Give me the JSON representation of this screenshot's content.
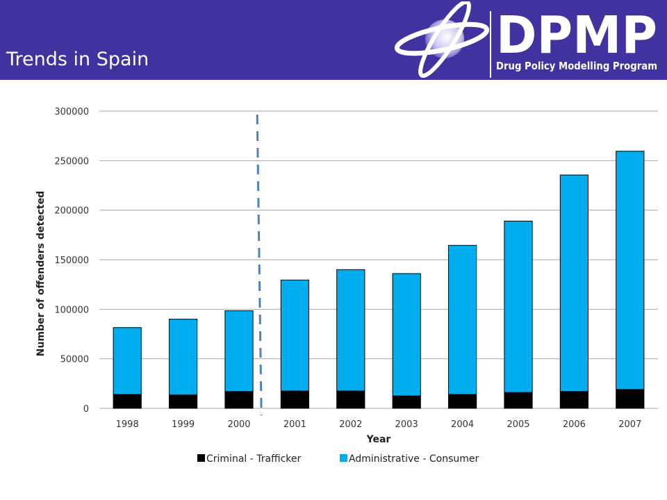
{
  "slide": {
    "title": "Trends in Spain"
  },
  "logo": {
    "name": "DPMP",
    "subtitle": "Drug Policy Modelling Program"
  },
  "colors": {
    "header_bg": "#4033a0",
    "criminal": "#000000",
    "administrative": "#00adef",
    "divider": "#4f81bd",
    "grid": "#a6a6a6"
  },
  "chart_data": {
    "type": "bar",
    "stacked": true,
    "categories": [
      "1998",
      "1999",
      "2000",
      "2001",
      "2002",
      "2003",
      "2004",
      "2005",
      "2006",
      "2007"
    ],
    "series": [
      {
        "name": "Criminal - Trafficker",
        "values": [
          14000,
          13500,
          17000,
          17500,
          17500,
          12500,
          14000,
          16000,
          17000,
          19000
        ]
      },
      {
        "name": "Administrative - Consumer",
        "values": [
          67500,
          76500,
          81500,
          112000,
          122500,
          123500,
          150500,
          173000,
          218500,
          240500
        ]
      }
    ],
    "xlabel": "Year",
    "ylabel": "Number of offenders detected",
    "ylim": [
      0,
      300000
    ],
    "yticks": [
      "0",
      "50000",
      "100000",
      "150000",
      "200000",
      "250000",
      "300000"
    ],
    "grid": "horizontal",
    "legend_position": "bottom",
    "annotation": "dashed vertical divider between 2000 and 2001"
  }
}
